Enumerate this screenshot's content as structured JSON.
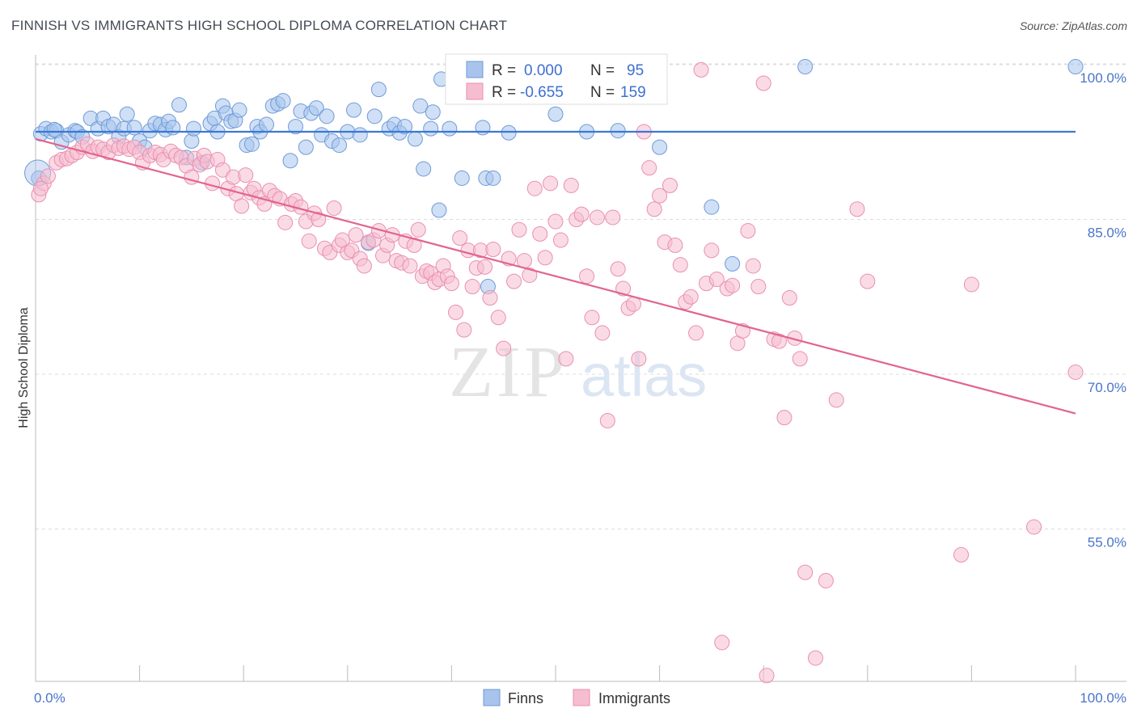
{
  "title": "FINNISH VS IMMIGRANTS HIGH SCHOOL DIPLOMA CORRELATION CHART",
  "source": "Source: ZipAtlas.com",
  "watermark": {
    "zip": "ZIP",
    "atlas": "atlas"
  },
  "chart_data": {
    "type": "scatter",
    "title": "FINNISH VS IMMIGRANTS HIGH SCHOOL DIPLOMA CORRELATION CHART",
    "xlabel": "",
    "ylabel": "High School Diploma",
    "xlim": [
      0,
      100
    ],
    "ylim": [
      40,
      101.5
    ],
    "x_tick_labels": [
      "0.0%",
      "100.0%"
    ],
    "y_ticks": [
      55,
      70,
      85,
      100
    ],
    "y_tick_labels": [
      "55.0%",
      "70.0%",
      "85.0%",
      "100.0%"
    ],
    "grid": "horizontal dashed",
    "legend_placement": "top-center",
    "series": [
      {
        "name": "Finns",
        "color": "#a8c4ec",
        "stroke": "#6f9ad8",
        "line_color": "#3a78d4",
        "R": "0.000",
        "N": "95",
        "trend": {
          "x": [
            0,
            100
          ],
          "y": [
            93.5,
            93.5
          ]
        },
        "points": [
          [
            0.5,
            93.3
          ],
          [
            1.0,
            93.8
          ],
          [
            1.5,
            93.5
          ],
          [
            2.0,
            93.6
          ],
          [
            2.5,
            92.5
          ],
          [
            3.2,
            93.2
          ],
          [
            3.8,
            93.6
          ],
          [
            4.0,
            93.5
          ],
          [
            4.5,
            93.0
          ],
          [
            5.3,
            94.8
          ],
          [
            6.0,
            93.8
          ],
          [
            6.5,
            94.8
          ],
          [
            7.0,
            94.0
          ],
          [
            7.5,
            94.2
          ],
          [
            8.0,
            93.0
          ],
          [
            8.5,
            93.8
          ],
          [
            8.8,
            95.2
          ],
          [
            9.5,
            93.9
          ],
          [
            10.0,
            92.6
          ],
          [
            10.5,
            92.0
          ],
          [
            11.0,
            93.6
          ],
          [
            11.5,
            94.3
          ],
          [
            12.0,
            94.2
          ],
          [
            12.5,
            93.7
          ],
          [
            12.8,
            94.5
          ],
          [
            13.2,
            93.9
          ],
          [
            13.8,
            96.1
          ],
          [
            14.5,
            91.0
          ],
          [
            15.0,
            92.6
          ],
          [
            15.2,
            93.8
          ],
          [
            16.0,
            90.5
          ],
          [
            16.8,
            94.3
          ],
          [
            17.2,
            94.8
          ],
          [
            17.5,
            93.5
          ],
          [
            18.0,
            96.0
          ],
          [
            18.3,
            95.3
          ],
          [
            18.8,
            94.5
          ],
          [
            19.2,
            94.6
          ],
          [
            19.6,
            95.6
          ],
          [
            20.3,
            92.2
          ],
          [
            20.8,
            92.3
          ],
          [
            21.3,
            94.0
          ],
          [
            21.6,
            93.5
          ],
          [
            22.2,
            94.2
          ],
          [
            22.8,
            96.0
          ],
          [
            23.3,
            96.2
          ],
          [
            23.8,
            96.5
          ],
          [
            24.5,
            90.7
          ],
          [
            25.0,
            94.0
          ],
          [
            25.5,
            95.5
          ],
          [
            26.0,
            92.0
          ],
          [
            26.5,
            95.3
          ],
          [
            27.0,
            95.8
          ],
          [
            27.5,
            93.2
          ],
          [
            28.0,
            95.0
          ],
          [
            28.5,
            92.6
          ],
          [
            29.2,
            92.2
          ],
          [
            30.0,
            93.5
          ],
          [
            30.6,
            95.6
          ],
          [
            31.2,
            93.2
          ],
          [
            32.0,
            82.7
          ],
          [
            32.6,
            95.0
          ],
          [
            33.0,
            97.6
          ],
          [
            34.0,
            93.8
          ],
          [
            34.5,
            94.2
          ],
          [
            35.0,
            93.4
          ],
          [
            35.5,
            94.0
          ],
          [
            36.5,
            92.8
          ],
          [
            37.0,
            96.0
          ],
          [
            37.3,
            89.9
          ],
          [
            38.0,
            93.8
          ],
          [
            38.2,
            95.4
          ],
          [
            38.8,
            85.9
          ],
          [
            39.0,
            98.6
          ],
          [
            39.8,
            93.8
          ],
          [
            41.0,
            89.0
          ],
          [
            43.0,
            93.9
          ],
          [
            43.3,
            89.0
          ],
          [
            44.0,
            89.0
          ],
          [
            43.5,
            78.5
          ],
          [
            45.0,
            98.5
          ],
          [
            45.5,
            93.4
          ],
          [
            48.0,
            99.5
          ],
          [
            50.0,
            95.2
          ],
          [
            53.0,
            93.5
          ],
          [
            53.5,
            98.5
          ],
          [
            56.0,
            93.6
          ],
          [
            57.0,
            99.8
          ],
          [
            60.0,
            92.0
          ],
          [
            65.0,
            86.2
          ],
          [
            67.0,
            80.7
          ],
          [
            74.0,
            99.8
          ],
          [
            100.0,
            99.8
          ],
          [
            0.3,
            89.0
          ],
          [
            1.8,
            93.7
          ]
        ]
      },
      {
        "name": "Immigrants",
        "color": "#f6bdd0",
        "stroke": "#ea8fb0",
        "line_color": "#e2648f",
        "R": "-0.655",
        "N": "159",
        "trend": {
          "x": [
            0,
            100
          ],
          "y": [
            92.8,
            66.2
          ]
        },
        "points": [
          [
            0.3,
            87.4
          ],
          [
            0.8,
            88.5
          ],
          [
            1.2,
            89.2
          ],
          [
            2.0,
            90.5
          ],
          [
            2.5,
            90.8
          ],
          [
            3.0,
            90.9
          ],
          [
            3.5,
            91.2
          ],
          [
            4.0,
            91.5
          ],
          [
            4.5,
            92.0
          ],
          [
            5.0,
            92.3
          ],
          [
            5.5,
            91.6
          ],
          [
            6.0,
            92.0
          ],
          [
            6.5,
            91.8
          ],
          [
            7.0,
            91.5
          ],
          [
            7.5,
            92.2
          ],
          [
            8.0,
            91.9
          ],
          [
            8.5,
            92.1
          ],
          [
            9.0,
            91.8
          ],
          [
            9.5,
            92.0
          ],
          [
            10.0,
            91.5
          ],
          [
            10.3,
            90.5
          ],
          [
            11.0,
            91.2
          ],
          [
            11.5,
            91.5
          ],
          [
            12.0,
            91.3
          ],
          [
            12.3,
            90.8
          ],
          [
            13.0,
            91.6
          ],
          [
            13.5,
            91.2
          ],
          [
            14.0,
            91.0
          ],
          [
            14.5,
            90.2
          ],
          [
            15.0,
            89.1
          ],
          [
            15.3,
            90.9
          ],
          [
            15.8,
            90.3
          ],
          [
            16.2,
            91.2
          ],
          [
            16.5,
            90.6
          ],
          [
            17.0,
            88.5
          ],
          [
            17.5,
            90.8
          ],
          [
            18.0,
            89.8
          ],
          [
            18.5,
            88.0
          ],
          [
            19.0,
            89.1
          ],
          [
            19.3,
            87.5
          ],
          [
            19.8,
            86.3
          ],
          [
            20.2,
            89.3
          ],
          [
            20.7,
            87.6
          ],
          [
            21.0,
            88.0
          ],
          [
            21.5,
            87.1
          ],
          [
            22.0,
            86.5
          ],
          [
            22.5,
            87.8
          ],
          [
            23.0,
            87.3
          ],
          [
            23.5,
            87.0
          ],
          [
            24.0,
            84.7
          ],
          [
            24.6,
            86.5
          ],
          [
            25.0,
            86.8
          ],
          [
            25.5,
            86.2
          ],
          [
            26.0,
            84.8
          ],
          [
            26.3,
            82.9
          ],
          [
            26.8,
            85.6
          ],
          [
            27.2,
            85.0
          ],
          [
            27.8,
            82.2
          ],
          [
            28.3,
            81.8
          ],
          [
            28.7,
            86.1
          ],
          [
            29.2,
            82.5
          ],
          [
            29.5,
            83.0
          ],
          [
            30.0,
            81.8
          ],
          [
            30.4,
            82.0
          ],
          [
            30.8,
            83.5
          ],
          [
            31.2,
            81.2
          ],
          [
            31.6,
            80.5
          ],
          [
            32.0,
            82.8
          ],
          [
            32.5,
            83.0
          ],
          [
            33.0,
            83.9
          ],
          [
            33.4,
            81.5
          ],
          [
            33.8,
            82.5
          ],
          [
            34.3,
            83.5
          ],
          [
            34.7,
            81.0
          ],
          [
            35.2,
            80.8
          ],
          [
            35.6,
            82.9
          ],
          [
            36.0,
            80.5
          ],
          [
            36.4,
            82.5
          ],
          [
            36.8,
            84.0
          ],
          [
            37.2,
            79.5
          ],
          [
            37.6,
            80.0
          ],
          [
            38.0,
            79.8
          ],
          [
            38.4,
            78.9
          ],
          [
            38.8,
            79.2
          ],
          [
            39.2,
            80.5
          ],
          [
            39.6,
            79.5
          ],
          [
            40.0,
            78.8
          ],
          [
            40.4,
            76.0
          ],
          [
            40.8,
            83.2
          ],
          [
            41.2,
            74.3
          ],
          [
            41.6,
            82.0
          ],
          [
            42.0,
            78.5
          ],
          [
            42.4,
            80.3
          ],
          [
            42.8,
            82.0
          ],
          [
            43.2,
            80.4
          ],
          [
            43.7,
            77.4
          ],
          [
            44.0,
            82.1
          ],
          [
            44.5,
            75.5
          ],
          [
            45.0,
            72.5
          ],
          [
            45.5,
            81.2
          ],
          [
            46.0,
            79.0
          ],
          [
            46.5,
            84.0
          ],
          [
            47.0,
            81.0
          ],
          [
            47.5,
            79.6
          ],
          [
            48.0,
            88.0
          ],
          [
            48.5,
            83.6
          ],
          [
            49.0,
            81.3
          ],
          [
            49.5,
            88.5
          ],
          [
            50.0,
            84.8
          ],
          [
            50.5,
            83.0
          ],
          [
            51.0,
            71.5
          ],
          [
            51.5,
            88.3
          ],
          [
            52.0,
            85.0
          ],
          [
            52.5,
            85.5
          ],
          [
            53.0,
            79.5
          ],
          [
            53.5,
            75.5
          ],
          [
            54.0,
            85.2
          ],
          [
            54.5,
            74.0
          ],
          [
            55.0,
            65.5
          ],
          [
            55.5,
            85.2
          ],
          [
            56.0,
            80.2
          ],
          [
            56.5,
            78.3
          ],
          [
            57.0,
            76.4
          ],
          [
            57.5,
            76.8
          ],
          [
            58.0,
            71.5
          ],
          [
            58.5,
            93.5
          ],
          [
            59.0,
            90.0
          ],
          [
            59.5,
            86.0
          ],
          [
            60.0,
            87.3
          ],
          [
            60.5,
            82.8
          ],
          [
            61.0,
            88.3
          ],
          [
            61.5,
            82.5
          ],
          [
            62.0,
            80.6
          ],
          [
            62.5,
            77.0
          ],
          [
            63.0,
            77.5
          ],
          [
            63.5,
            74.0
          ],
          [
            64.0,
            99.5
          ],
          [
            64.5,
            78.8
          ],
          [
            65.0,
            82.0
          ],
          [
            65.5,
            79.2
          ],
          [
            66.0,
            44.0
          ],
          [
            66.5,
            78.3
          ],
          [
            67.0,
            78.6
          ],
          [
            67.5,
            73.0
          ],
          [
            68.0,
            74.2
          ],
          [
            68.5,
            83.9
          ],
          [
            69.0,
            80.5
          ],
          [
            69.5,
            78.5
          ],
          [
            70.0,
            98.2
          ],
          [
            70.3,
            40.8
          ],
          [
            71.0,
            73.4
          ],
          [
            71.5,
            73.2
          ],
          [
            72.0,
            65.8
          ],
          [
            72.5,
            77.4
          ],
          [
            73.0,
            73.5
          ],
          [
            73.5,
            71.5
          ],
          [
            74.0,
            50.8
          ],
          [
            75.0,
            42.5
          ],
          [
            76.0,
            50.0
          ],
          [
            77.0,
            67.5
          ],
          [
            79.0,
            86.0
          ],
          [
            80.0,
            79.0
          ],
          [
            89.0,
            52.5
          ],
          [
            90.0,
            78.7
          ],
          [
            96.0,
            55.2
          ],
          [
            100.0,
            70.2
          ],
          [
            0.5,
            88.0
          ]
        ]
      }
    ]
  },
  "legend": {
    "r_label": "R =",
    "n_label": "N =",
    "entries": [
      {
        "r": "0.000",
        "n": "95"
      },
      {
        "r": "-0.655",
        "n": "159"
      }
    ]
  },
  "bottom_legend": [
    "Finns",
    "Immigrants"
  ]
}
